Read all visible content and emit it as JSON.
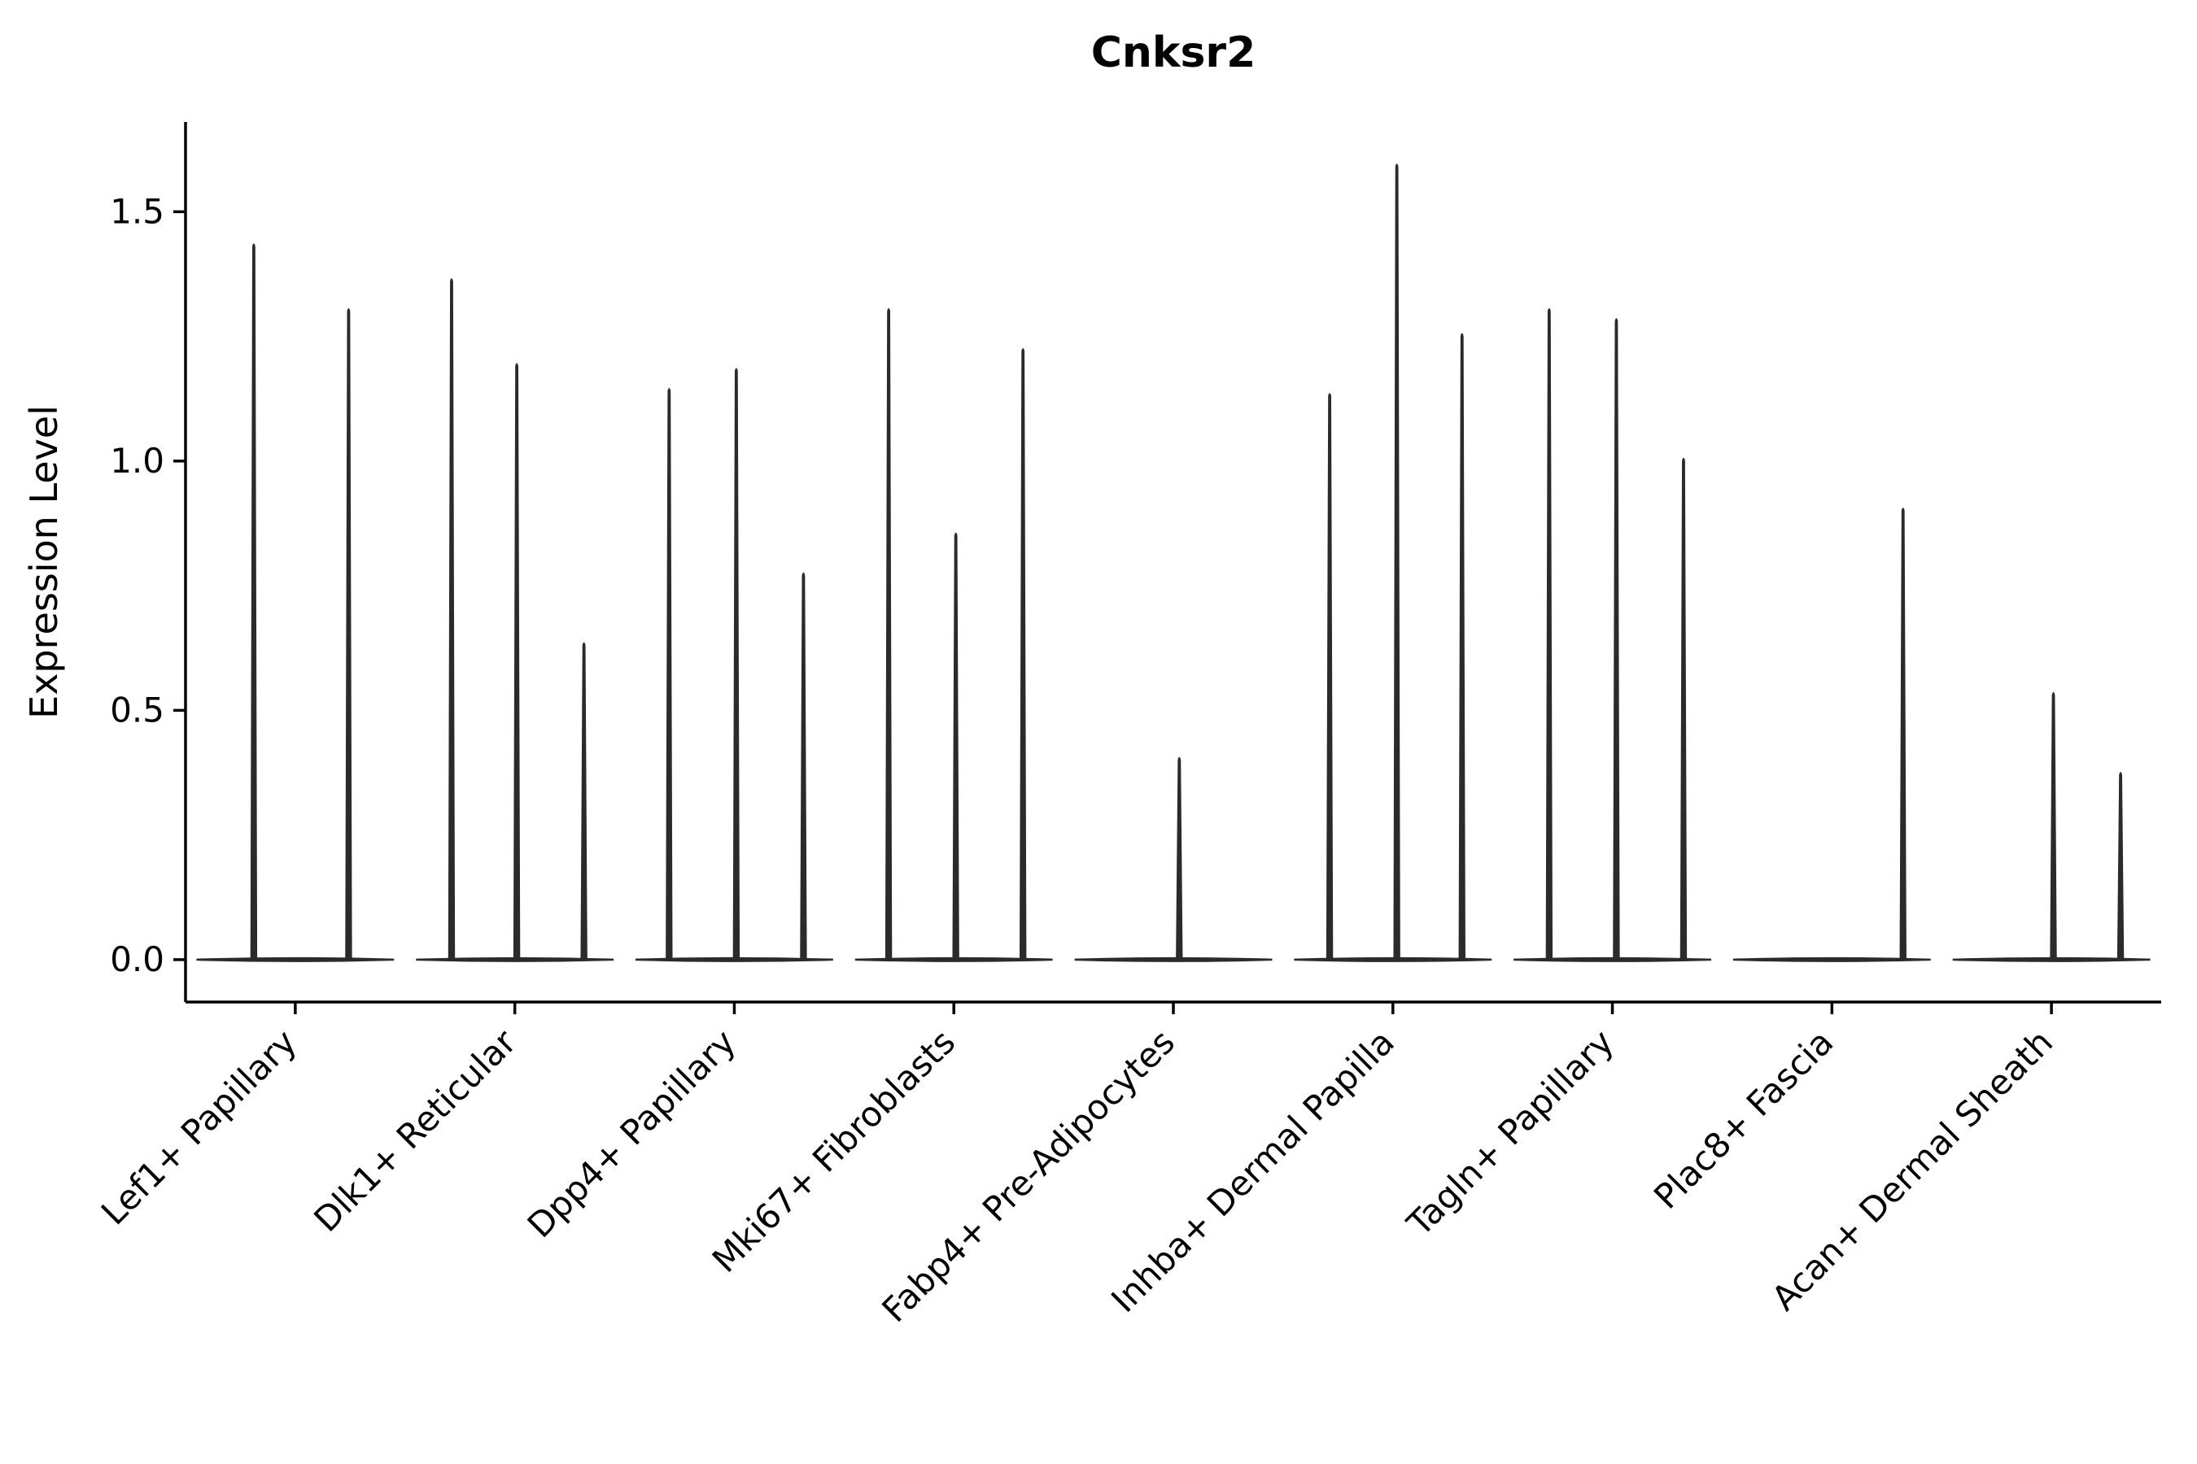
{
  "chart_data": {
    "type": "violin",
    "title": "Cnksr2",
    "xlabel": "",
    "ylabel": "Expression Level",
    "yticks": [
      0.0,
      0.5,
      1.0,
      1.5
    ],
    "ylim": [
      -0.085,
      1.68
    ],
    "grid": false,
    "legend": "none",
    "line_color": "#2b2b2b",
    "axis_color": "#000000",
    "categories": [
      "Lef1+ Papillary",
      "Dlk1+ Reticular",
      "Dpp4+ Papillary",
      "Mki67+ Fibroblasts",
      "Fabp4+ Pre-Adipocytes",
      "Inhba+ Dermal Papilla",
      "Tagln+ Papillary",
      "Plac8+ Fascia",
      "Acan+ Dermal Sheath"
    ],
    "groups": [
      {
        "label": "Lef1+ Papillary",
        "spikes": [
          {
            "pos": 0.29,
            "height": 1.44
          },
          {
            "pos": 0.77,
            "height": 1.31
          }
        ]
      },
      {
        "label": "Dlk1+ Reticular",
        "spikes": [
          {
            "pos": 0.18,
            "height": 1.37
          },
          {
            "pos": 0.51,
            "height": 1.2
          },
          {
            "pos": 0.85,
            "height": 0.64
          }
        ]
      },
      {
        "label": "Dpp4+ Papillary",
        "spikes": [
          {
            "pos": 0.17,
            "height": 1.15
          },
          {
            "pos": 0.51,
            "height": 1.19
          },
          {
            "pos": 0.85,
            "height": 0.78
          }
        ]
      },
      {
        "label": "Mki67+ Fibroblasts",
        "spikes": [
          {
            "pos": 0.17,
            "height": 1.31
          },
          {
            "pos": 0.51,
            "height": 0.86
          },
          {
            "pos": 0.85,
            "height": 1.23
          }
        ]
      },
      {
        "label": "Fabp4+ Pre-Adipocytes",
        "spikes": [
          {
            "pos": 0.53,
            "height": 0.41
          }
        ]
      },
      {
        "label": "Inhba+ Dermal Papilla",
        "spikes": [
          {
            "pos": 0.18,
            "height": 1.14
          },
          {
            "pos": 0.52,
            "height": 1.6
          },
          {
            "pos": 0.85,
            "height": 1.26
          }
        ]
      },
      {
        "label": "Tagln+ Papillary",
        "spikes": [
          {
            "pos": 0.18,
            "height": 1.31
          },
          {
            "pos": 0.52,
            "height": 1.29
          },
          {
            "pos": 0.86,
            "height": 1.01
          }
        ]
      },
      {
        "label": "Plac8+ Fascia",
        "spikes": [
          {
            "pos": 0.86,
            "height": 0.91
          }
        ]
      },
      {
        "label": "Acan+ Dermal Sheath",
        "spikes": [
          {
            "pos": 0.51,
            "height": 0.54
          },
          {
            "pos": 0.85,
            "height": 0.38
          }
        ]
      }
    ]
  }
}
